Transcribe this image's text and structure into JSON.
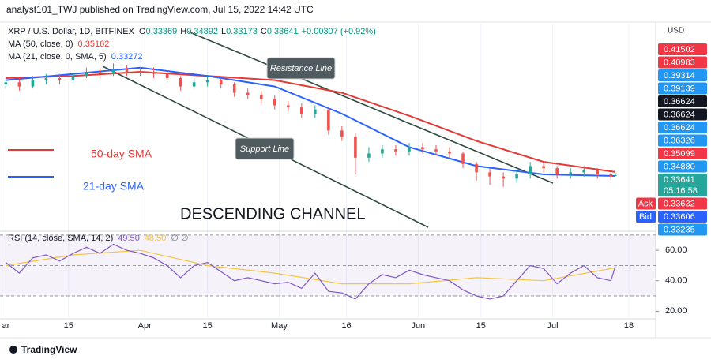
{
  "chart_data": {
    "type": "candlestick",
    "header": "analyst101_TWJ published on TradingView.com, Jul 15, 2022 14:42 UTC",
    "legend": {
      "symbol": "XRP / U.S. Dollar, 1D, BITFINEX",
      "ohlc_labels": [
        "O",
        "H",
        "L",
        "C"
      ],
      "change": "+0.00307 (+0.92%)"
    },
    "up_color": "#26a69a",
    "down_color": "#ef5350",
    "xlim": [
      -1.3,
      145
    ],
    "xticks": [
      {
        "value": 0,
        "label": "ar"
      },
      {
        "value": 14,
        "label": "15"
      },
      {
        "value": 31,
        "label": "Apr"
      },
      {
        "value": 45,
        "label": "15"
      },
      {
        "value": 61,
        "label": "May"
      },
      {
        "value": 76,
        "label": "16"
      },
      {
        "value": 92,
        "label": "Jun"
      },
      {
        "value": 106,
        "label": "15"
      },
      {
        "value": 122,
        "label": "Jul"
      },
      {
        "value": 139,
        "label": "18"
      }
    ],
    "ylim": [
      0.08,
      1.06
    ],
    "candles": {
      "x": [
        0,
        3,
        6,
        9,
        12,
        15,
        18,
        21,
        24,
        27,
        30,
        33,
        36,
        39,
        42,
        45,
        48,
        51,
        54,
        57,
        60,
        63,
        66,
        69,
        72,
        75,
        78,
        81,
        84,
        87,
        90,
        93,
        96,
        99,
        102,
        105,
        108,
        111,
        114,
        117,
        120,
        123,
        126,
        129,
        132,
        135,
        136
      ],
      "open": [
        0.77,
        0.78,
        0.76,
        0.79,
        0.8,
        0.79,
        0.81,
        0.83,
        0.82,
        0.84,
        0.83,
        0.83,
        0.82,
        0.8,
        0.76,
        0.78,
        0.79,
        0.77,
        0.73,
        0.72,
        0.7,
        0.67,
        0.66,
        0.63,
        0.65,
        0.55,
        0.52,
        0.42,
        0.44,
        0.46,
        0.45,
        0.47,
        0.46,
        0.45,
        0.44,
        0.39,
        0.35,
        0.33,
        0.32,
        0.34,
        0.38,
        0.37,
        0.34,
        0.35,
        0.36,
        0.34,
        0.33369
      ],
      "high": [
        0.8,
        0.8,
        0.81,
        0.82,
        0.82,
        0.83,
        0.85,
        0.85,
        0.87,
        0.86,
        0.85,
        0.85,
        0.83,
        0.81,
        0.8,
        0.81,
        0.8,
        0.78,
        0.75,
        0.74,
        0.72,
        0.69,
        0.68,
        0.67,
        0.66,
        0.57,
        0.54,
        0.47,
        0.48,
        0.48,
        0.49,
        0.49,
        0.48,
        0.47,
        0.45,
        0.4,
        0.37,
        0.35,
        0.36,
        0.4,
        0.4,
        0.38,
        0.37,
        0.38,
        0.37,
        0.35,
        0.34892
      ],
      "low": [
        0.75,
        0.74,
        0.75,
        0.77,
        0.77,
        0.78,
        0.8,
        0.8,
        0.81,
        0.81,
        0.81,
        0.8,
        0.78,
        0.74,
        0.75,
        0.76,
        0.75,
        0.71,
        0.7,
        0.68,
        0.65,
        0.64,
        0.61,
        0.61,
        0.53,
        0.5,
        0.34,
        0.4,
        0.42,
        0.43,
        0.43,
        0.44,
        0.43,
        0.42,
        0.37,
        0.31,
        0.29,
        0.28,
        0.3,
        0.32,
        0.35,
        0.32,
        0.32,
        0.33,
        0.32,
        0.31,
        0.33173
      ],
      "close": [
        0.78,
        0.76,
        0.79,
        0.8,
        0.79,
        0.81,
        0.83,
        0.82,
        0.84,
        0.83,
        0.83,
        0.82,
        0.8,
        0.76,
        0.78,
        0.79,
        0.77,
        0.73,
        0.72,
        0.7,
        0.67,
        0.66,
        0.63,
        0.65,
        0.55,
        0.52,
        0.42,
        0.44,
        0.46,
        0.45,
        0.47,
        0.46,
        0.45,
        0.44,
        0.39,
        0.35,
        0.33,
        0.32,
        0.34,
        0.38,
        0.37,
        0.34,
        0.35,
        0.36,
        0.34,
        0.33,
        0.33641
      ]
    },
    "series": [
      {
        "name": "MA (50, close, 0)",
        "color": "#e53935",
        "x": [
          0,
          15,
          30,
          45,
          60,
          75,
          90,
          105,
          120,
          136
        ],
        "values": [
          0.8,
          0.81,
          0.83,
          0.81,
          0.79,
          0.73,
          0.62,
          0.5,
          0.4,
          0.35162
        ]
      },
      {
        "name": "MA (21, close, 0, SMA, 5)",
        "color": "#2962ff",
        "x": [
          0,
          15,
          30,
          45,
          60,
          75,
          90,
          105,
          120,
          136
        ],
        "values": [
          0.79,
          0.82,
          0.85,
          0.81,
          0.76,
          0.63,
          0.47,
          0.38,
          0.34,
          0.33272
        ]
      }
    ],
    "price_labels": [
      {
        "text": "0.41502",
        "bg": "#f23645"
      },
      {
        "text": "0.40983",
        "bg": "#f23645"
      },
      {
        "text": "0.39314",
        "bg": "#2196f3"
      },
      {
        "text": "0.39139",
        "bg": "#2196f3"
      },
      {
        "text": "0.36624",
        "bg": "#131722"
      },
      {
        "text": "0.36624",
        "bg": "#131722"
      },
      {
        "text": "0.36624",
        "bg": "#2196f3"
      },
      {
        "text": "0.36326",
        "bg": "#2196f3"
      },
      {
        "text": "0.35099",
        "bg": "#f23645"
      },
      {
        "text": "0.34880",
        "bg": "#2196f3"
      },
      {
        "text": "0.33641",
        "bg": "#26a69a",
        "sub": "05:16:58"
      },
      {
        "text": "0.33632",
        "bg": "#f23645",
        "tag": "Ask"
      },
      {
        "text": "0.33606",
        "bg": "#2962ff",
        "tag": "Bid"
      },
      {
        "text": "0.33235",
        "bg": "#2196f3"
      }
    ],
    "currency": "USD",
    "annotations": {
      "resistance": "Resistance Line",
      "support": "Support Line",
      "sma50": "50-day SMA",
      "sma21": "21-day SMA",
      "channel": "DESCENDING CHANNEL"
    },
    "rsi": {
      "legend": "RSI (14, close, SMA, 14, 2)",
      "legend_values": [
        "49.50",
        "48.50"
      ],
      "legend_tail": "∅ ∅",
      "color": "#7e57c2",
      "sma_color": "#f5c542",
      "ylim": [
        16,
        71
      ],
      "yticks": [
        {
          "value": 60,
          "label": "60.00"
        },
        {
          "value": 40,
          "label": "40.00"
        },
        {
          "value": 20,
          "label": "20.00"
        }
      ],
      "bands": [
        30,
        50,
        70
      ],
      "values": [
        52,
        45,
        55,
        57,
        53,
        58,
        62,
        58,
        64,
        60,
        58,
        55,
        50,
        42,
        50,
        52,
        46,
        40,
        42,
        40,
        38,
        39,
        35,
        45,
        33,
        32,
        28,
        38,
        44,
        42,
        47,
        44,
        42,
        40,
        34,
        30,
        28,
        30,
        40,
        50,
        48,
        38,
        45,
        50,
        42,
        40,
        49.5
      ],
      "sma_x": [
        0,
        15,
        30,
        45,
        60,
        75,
        90,
        105,
        120,
        136
      ],
      "sma_values": [
        50,
        57,
        60,
        50,
        45,
        38,
        38,
        42,
        40,
        48.5
      ]
    },
    "footer": "TradingView"
  }
}
